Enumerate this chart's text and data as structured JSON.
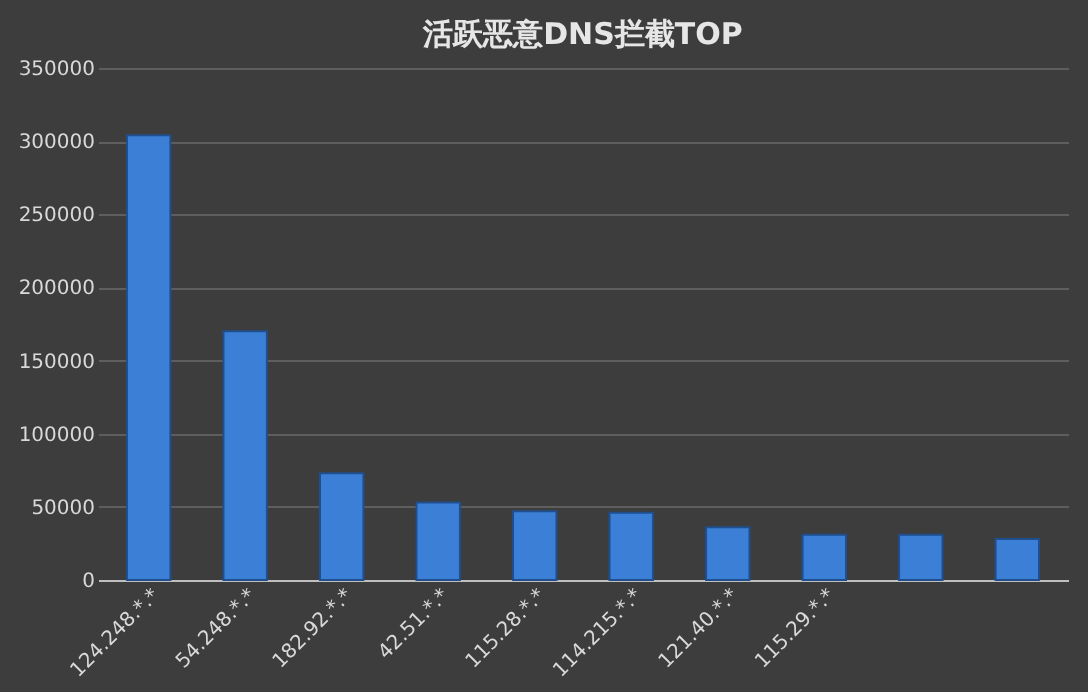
{
  "chart_data": {
    "type": "bar",
    "title": "活跃恶意DNS拦截TOP",
    "categories": [
      "124.248.*.*",
      "54.248.*.*",
      "182.92.*.*",
      "42.51.*.*",
      "115.28.*.*",
      "114.215.*.*",
      "121.40.*.*",
      "115.29.*.*",
      null,
      null
    ],
    "values": [
      304000,
      170000,
      73000,
      53000,
      47000,
      46000,
      36000,
      31000,
      31000,
      28000
    ],
    "color": "#3c7fd6",
    "ylim": [
      0,
      350000
    ],
    "yticks": [
      0,
      50000,
      100000,
      150000,
      200000,
      250000,
      300000,
      350000
    ],
    "grid": "y"
  }
}
